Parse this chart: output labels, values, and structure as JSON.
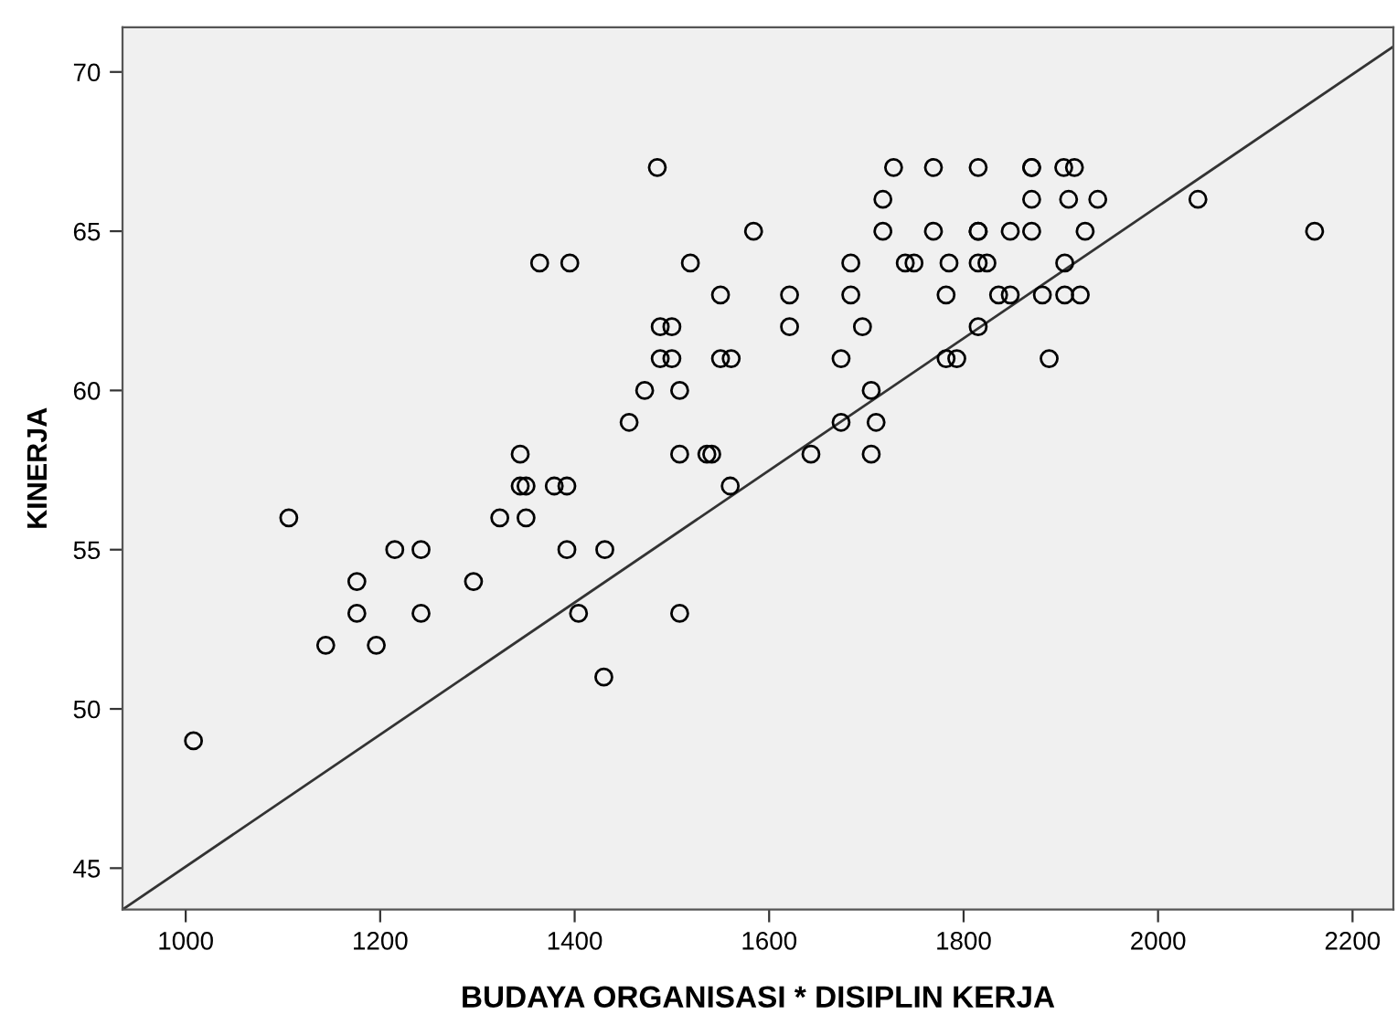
{
  "chart_data": {
    "type": "scatter",
    "xlabel": "BUDAYA ORGANISASI * DISIPLIN KERJA",
    "ylabel": "KINERJA",
    "xlim": [
      935,
      2242
    ],
    "ylim": [
      43.7,
      71.4
    ],
    "xticks": [
      1000,
      1200,
      1400,
      1600,
      1800,
      2000,
      2200
    ],
    "yticks": [
      45,
      50,
      55,
      60,
      65,
      70
    ],
    "grid": false,
    "legend": false,
    "series": [
      {
        "marker": "circle",
        "color": "#000000",
        "x": [
          1485,
          1728,
          1769,
          1815,
          1870,
          1870,
          1903,
          1914,
          1717,
          1870,
          1908,
          1938,
          2041,
          1584,
          1717,
          1769,
          1815,
          1815,
          1848,
          1870,
          1925,
          2161,
          1364,
          1395,
          1519,
          1684,
          1740,
          1749,
          1785,
          1815,
          1824,
          1904,
          1550,
          1621,
          1684,
          1782,
          1836,
          1848,
          1881,
          1904,
          1920,
          1488,
          1500,
          1621,
          1696,
          1815,
          1488,
          1500,
          1550,
          1561,
          1674,
          1782,
          1793,
          1888,
          1472,
          1508,
          1705,
          1456,
          1674,
          1710,
          1344,
          1508,
          1536,
          1541,
          1643,
          1705,
          1344,
          1350,
          1379,
          1392,
          1560,
          1106,
          1323,
          1350,
          1215,
          1242,
          1392,
          1431,
          1176,
          1296,
          1176,
          1242,
          1404,
          1508,
          1144,
          1196,
          1430,
          1008
        ],
        "values": [
          67,
          67,
          67,
          67,
          67,
          67,
          67,
          67,
          66,
          66,
          66,
          66,
          66,
          65,
          65,
          65,
          65,
          65,
          65,
          65,
          65,
          65,
          64,
          64,
          64,
          64,
          64,
          64,
          64,
          64,
          64,
          64,
          63,
          63,
          63,
          63,
          63,
          63,
          63,
          63,
          63,
          62,
          62,
          62,
          62,
          62,
          61,
          61,
          61,
          61,
          61,
          61,
          61,
          61,
          60,
          60,
          60,
          59,
          59,
          59,
          58,
          58,
          58,
          58,
          58,
          58,
          57,
          57,
          57,
          57,
          57,
          56,
          56,
          56,
          55,
          55,
          55,
          55,
          54,
          54,
          53,
          53,
          53,
          53,
          52,
          52,
          51,
          49
        ]
      },
      {
        "type": "line",
        "color": "#333333",
        "x": [
          935,
          2242
        ],
        "values": [
          43.7,
          70.8
        ],
        "line_style": "solid"
      }
    ]
  }
}
